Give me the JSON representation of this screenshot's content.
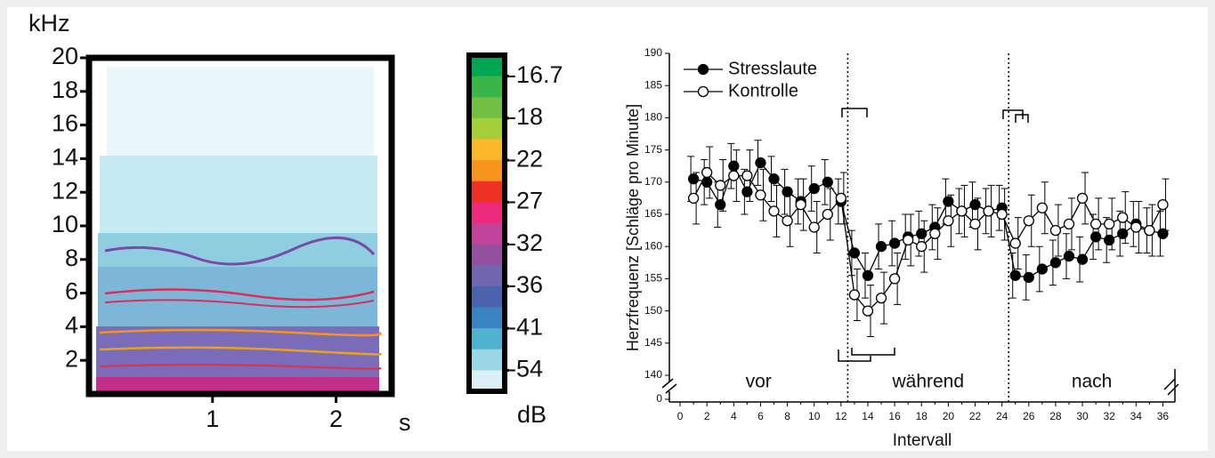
{
  "chart_data": [
    {
      "type": "spectrogram",
      "y_unit": "kHz",
      "x_unit": "s",
      "xlim": [
        0,
        2.45
      ],
      "ylim": [
        0,
        20
      ],
      "xticks": [
        1,
        2
      ],
      "yticks": [
        2,
        4,
        6,
        8,
        10,
        12,
        14,
        16,
        18,
        20
      ]
    },
    {
      "type": "colorbar",
      "unit": "dB",
      "ticks": [
        -16.7,
        -18,
        -22,
        -27,
        -32,
        -36,
        -41,
        -54
      ],
      "colors": [
        "#00a651",
        "#39b54a",
        "#72bf44",
        "#a6ce39",
        "#fbb829",
        "#f7941d",
        "#ee3124",
        "#ed2a7b",
        "#c1449a",
        "#92509f",
        "#7366b0",
        "#4b62ad",
        "#3a83c1",
        "#4fb3cf",
        "#9bd6e4",
        "#daf0f5"
      ]
    },
    {
      "type": "line",
      "xlabel": "Intervall",
      "ylabel": "Herzfrequenz [Schläge pro Minute]",
      "legend": "upper left",
      "x": [
        1,
        2,
        3,
        4,
        5,
        6,
        7,
        8,
        9,
        10,
        11,
        12,
        13,
        14,
        15,
        16,
        17,
        18,
        19,
        20,
        21,
        22,
        23,
        24,
        25,
        26,
        27,
        28,
        29,
        30,
        31,
        32,
        33,
        34,
        35,
        36
      ],
      "series": [
        {
          "name": "Stresslaute",
          "color": "#000000",
          "values": [
            170.5,
            170,
            166.5,
            172.5,
            168.5,
            173,
            170.5,
            168.5,
            167,
            169,
            170,
            167,
            159,
            155.5,
            160,
            160.5,
            161.5,
            162,
            163,
            167,
            165.5,
            166.5,
            165.5,
            166,
            155.5,
            155.2,
            156.5,
            157.5,
            158.5,
            158,
            161.5,
            161,
            162,
            163.5,
            162.5,
            162
          ],
          "errors": [
            3.5,
            3.5,
            3.5,
            3.5,
            3.5,
            3.5,
            3.5,
            3.5,
            3.5,
            3.5,
            3.5,
            3.5,
            3.5,
            3.5,
            3.5,
            3.5,
            3.5,
            3.5,
            3.5,
            3.5,
            3.5,
            3.5,
            3.5,
            3.5,
            3.5,
            3.5,
            3.5,
            3.5,
            3.5,
            3.5,
            3.5,
            3.5,
            3.5,
            3.5,
            3.5,
            3.5
          ]
        },
        {
          "name": "Kontrolle",
          "color": "#ffffff",
          "values": [
            167.5,
            171.5,
            169.5,
            171,
            171,
            168,
            165.5,
            164,
            166.5,
            163,
            165,
            167.5,
            152.5,
            150,
            152,
            155,
            161,
            160,
            162,
            164,
            165.5,
            163.5,
            165.5,
            165,
            160.5,
            164,
            166,
            162.5,
            163.5,
            167.5,
            163.5,
            163.5,
            164.5,
            163,
            162.5,
            166.5
          ],
          "errors": [
            4,
            4,
            4,
            4,
            4,
            4,
            4,
            4,
            4,
            4,
            4,
            4,
            4,
            4,
            4,
            4,
            4,
            4,
            4,
            4,
            4,
            4,
            4,
            4,
            4,
            4,
            4,
            4,
            4,
            4,
            4,
            4,
            4,
            4,
            4,
            4
          ]
        }
      ],
      "xlim": [
        -0.8,
        36.9
      ],
      "ylim": [
        140,
        190
      ],
      "xticks": [
        0,
        2,
        4,
        6,
        8,
        10,
        12,
        14,
        16,
        18,
        20,
        22,
        24,
        26,
        28,
        30,
        32,
        34,
        36
      ],
      "xminor_ticks": [
        1,
        3,
        5,
        7,
        9,
        11,
        13,
        15,
        17,
        19,
        21,
        23,
        25,
        27,
        29,
        31,
        33,
        35
      ],
      "yticks": [
        140,
        145,
        150,
        155,
        160,
        165,
        170,
        175,
        180,
        185,
        190
      ],
      "ybreak_tick": 0,
      "dividers": [
        12.5,
        24.5
      ],
      "annotations": [
        "vor",
        "während",
        "nach"
      ]
    }
  ]
}
